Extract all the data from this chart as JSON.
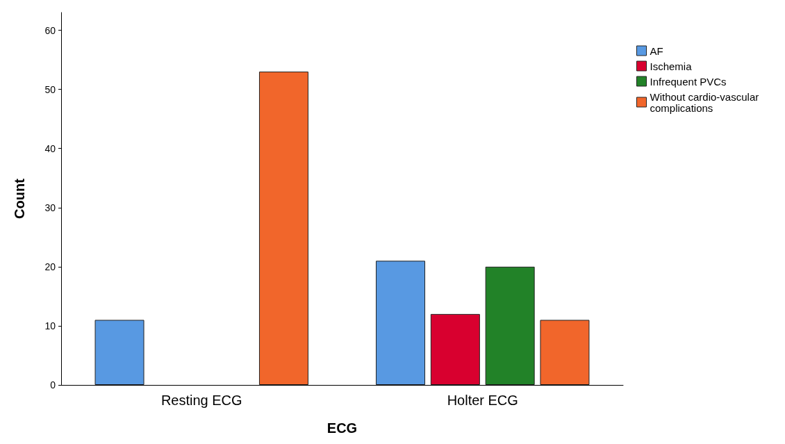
{
  "chart_data": {
    "type": "bar",
    "xlabel": "ECG",
    "ylabel": "Count",
    "categories": [
      "Resting ECG",
      "Holter ECG"
    ],
    "series": [
      {
        "name": "AF",
        "color": "#5899e2",
        "values": [
          11,
          21
        ]
      },
      {
        "name": "Ischemia",
        "color": "#d8002f",
        "values": [
          null,
          12
        ]
      },
      {
        "name": "Infrequent PVCs",
        "color": "#228228",
        "values": [
          null,
          20
        ]
      },
      {
        "name": "Without cardio-vascular complications",
        "color": "#f1662b",
        "values": [
          53,
          11
        ]
      }
    ],
    "ylim": [
      0,
      63
    ],
    "yticks": [
      0,
      10,
      20,
      30,
      40,
      50,
      60
    ],
    "grid": false,
    "legend": "top right"
  }
}
